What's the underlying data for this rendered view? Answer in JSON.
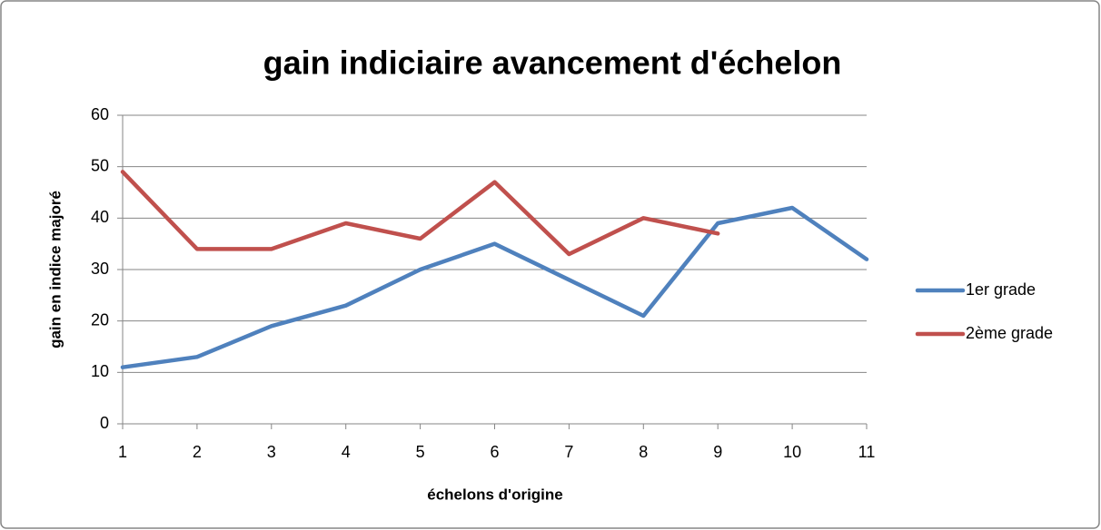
{
  "chart_data": {
    "type": "line",
    "title": "gain indiciaire avancement d'échelon",
    "x_label": "échelons d'origine",
    "y_label": "gain en indice majoré",
    "x": [
      1,
      2,
      3,
      4,
      5,
      6,
      7,
      8,
      9,
      10,
      11
    ],
    "series": [
      {
        "name": "1er grade",
        "color": "#4f81bd",
        "values": [
          11,
          13,
          19,
          23,
          30,
          35,
          28,
          21,
          39,
          42,
          32
        ]
      },
      {
        "name": "2ème grade",
        "color": "#c0504d",
        "values": [
          49,
          34,
          34,
          39,
          36,
          47,
          33,
          40,
          37,
          null,
          null
        ]
      }
    ],
    "xlim": [
      1,
      11
    ],
    "xticks": [
      1,
      2,
      3,
      4,
      5,
      6,
      7,
      8,
      9,
      10,
      11
    ],
    "ylim": [
      0,
      60
    ],
    "yticks": [
      0,
      10,
      20,
      30,
      40,
      50,
      60
    ],
    "grid": true,
    "legend": "right"
  }
}
